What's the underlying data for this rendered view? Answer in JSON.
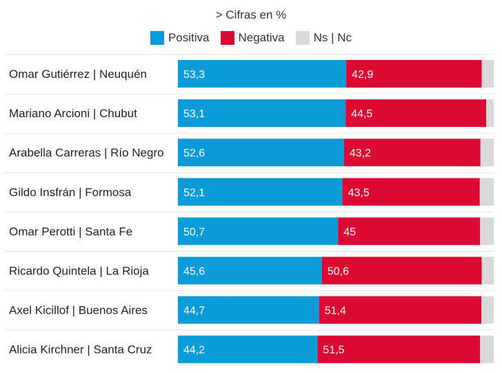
{
  "chart_data": {
    "type": "bar",
    "orientation": "horizontal",
    "stacked": true,
    "subtitle": "> Cifras en %",
    "legend_position": "top",
    "categories": [
      "Omar Gutiérrez | Neuquén",
      "Mariano Arcioni | Chubut",
      "Arabella Carreras | Río Negro",
      "Gildo Insfrán | Formosa",
      "Omar Perotti | Santa Fe",
      "Ricardo Quintela | La Rioja",
      "Axel Kicillof | Buenos Aires",
      "Alicia Kirchner | Santa Cruz"
    ],
    "series": [
      {
        "name": "Positiva",
        "color": "#0a9bd8",
        "values": [
          53.3,
          53.1,
          52.6,
          52.1,
          50.7,
          45.6,
          44.7,
          44.2
        ],
        "labels": [
          "53,3",
          "53,1",
          "52,6",
          "52,1",
          "50,7",
          "45,6",
          "44,7",
          "44,2"
        ]
      },
      {
        "name": "Negativa",
        "color": "#dc0a33",
        "values": [
          42.9,
          44.5,
          43.2,
          43.5,
          45,
          50.6,
          51.4,
          51.5
        ],
        "labels": [
          "42,9",
          "44,5",
          "43,2",
          "43,5",
          "45",
          "50,6",
          "51,4",
          "51,5"
        ]
      },
      {
        "name": "Ns | Nc",
        "color": "#d9d9d9",
        "values": [
          3.8,
          2.4,
          4.2,
          4.4,
          4.3,
          3.8,
          3.9,
          4.3
        ]
      }
    ],
    "xlim": [
      0,
      100
    ]
  }
}
